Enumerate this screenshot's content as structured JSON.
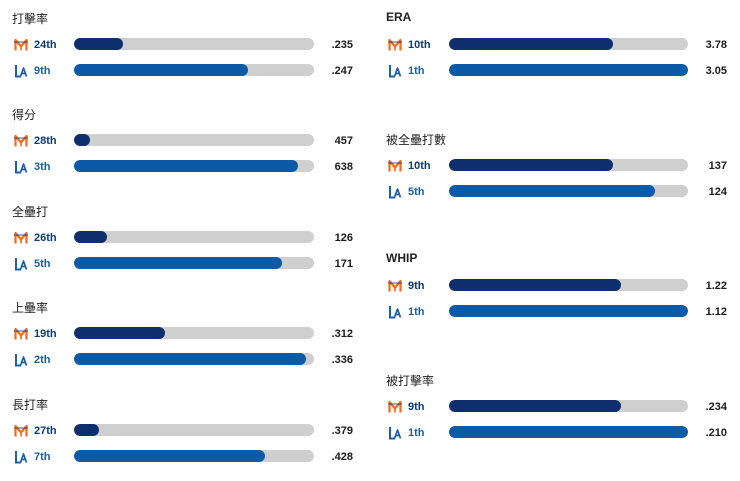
{
  "teams": {
    "mets": {
      "name": "Mets",
      "logo_icon": "mets-logo-icon",
      "rank_color": "#0b3a77",
      "bar_color": "#0e2e6e",
      "logo_color": "#f26b1f"
    },
    "dodgers": {
      "name": "Dodgers",
      "logo_icon": "dodgers-logo-icon",
      "rank_color": "#1c5fa3",
      "bar_color": "#0a5aa6",
      "logo_color": "#1d5fa8"
    }
  },
  "chart_data": {
    "type": "bar",
    "columns": [
      [
        {
          "title": "打擊率",
          "rows": [
            {
              "team": "mets",
              "rank": "24th",
              "value": ".235",
              "fill": 0.205
            },
            {
              "team": "dodgers",
              "rank": "9th",
              "value": ".247",
              "fill": 0.725
            }
          ]
        },
        {
          "title": "得分",
          "rows": [
            {
              "team": "mets",
              "rank": "28th",
              "value": "457",
              "fill": 0.068
            },
            {
              "team": "dodgers",
              "rank": "3th",
              "value": "638",
              "fill": 0.935
            }
          ]
        },
        {
          "title": "全壘打",
          "rows": [
            {
              "team": "mets",
              "rank": "26th",
              "value": "126",
              "fill": 0.137
            },
            {
              "team": "dodgers",
              "rank": "5th",
              "value": "171",
              "fill": 0.865
            }
          ]
        },
        {
          "title": "上壘率",
          "rows": [
            {
              "team": "mets",
              "rank": "19th",
              "value": ".312",
              "fill": 0.38
            },
            {
              "team": "dodgers",
              "rank": "2th",
              "value": ".336",
              "fill": 0.965
            }
          ]
        },
        {
          "title": "長打率",
          "rows": [
            {
              "team": "mets",
              "rank": "27th",
              "value": ".379",
              "fill": 0.103
            },
            {
              "team": "dodgers",
              "rank": "7th",
              "value": ".428",
              "fill": 0.795
            }
          ]
        }
      ],
      [
        {
          "title": "ERA",
          "rows": [
            {
              "team": "mets",
              "rank": "10th",
              "value": "3.78",
              "fill": 0.685
            },
            {
              "team": "dodgers",
              "rank": "1th",
              "value": "3.05",
              "fill": 1.0
            }
          ]
        },
        {
          "title": "被全壘打數",
          "rows": [
            {
              "team": "mets",
              "rank": "10th",
              "value": "137",
              "fill": 0.685
            },
            {
              "team": "dodgers",
              "rank": "5th",
              "value": "124",
              "fill": 0.86
            }
          ]
        },
        {
          "title": "WHIP",
          "rows": [
            {
              "team": "mets",
              "rank": "9th",
              "value": "1.22",
              "fill": 0.72
            },
            {
              "team": "dodgers",
              "rank": "1th",
              "value": "1.12",
              "fill": 1.0
            }
          ]
        },
        {
          "title": "被打擊率",
          "rows": [
            {
              "team": "mets",
              "rank": "9th",
              "value": ".234",
              "fill": 0.72
            },
            {
              "team": "dodgers",
              "rank": "1th",
              "value": ".210",
              "fill": 1.0
            }
          ]
        }
      ]
    ]
  }
}
